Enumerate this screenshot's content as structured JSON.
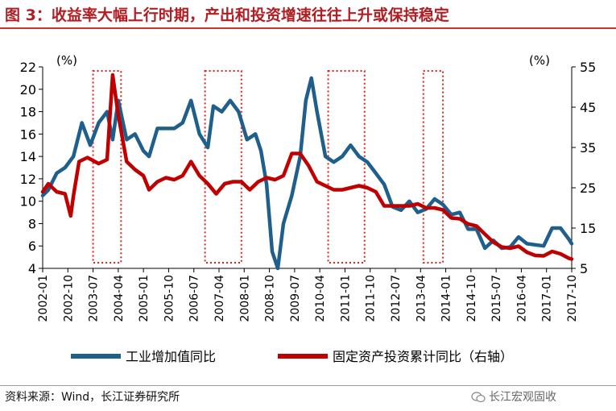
{
  "header": {
    "title": "图 3：收益率大幅上行时期，产出和投资增速往往上升或保持稳定"
  },
  "footer": {
    "source": "资料来源：Wind，长江证券研究所",
    "brand": "长江宏观固收"
  },
  "colors": {
    "series_blue": "#1f5f8b",
    "series_red": "#c00000",
    "highlight_box": "#e02020",
    "title": "#b01e23"
  },
  "chart_data": {
    "type": "line",
    "title": "",
    "left_axis": {
      "unit": "(%)",
      "ylim": [
        4,
        22
      ],
      "ticks": [
        4,
        6,
        8,
        10,
        12,
        14,
        16,
        18,
        20,
        22
      ]
    },
    "right_axis": {
      "unit": "(%)",
      "ylim": [
        5,
        55
      ],
      "ticks": [
        5,
        15,
        25,
        35,
        45,
        55
      ]
    },
    "x_range": [
      "2002-01",
      "2017-10"
    ],
    "x_ticks": [
      "2002-01",
      "2002-10",
      "2003-07",
      "2004-04",
      "2005-01",
      "2005-10",
      "2006-07",
      "2007-04",
      "2008-01",
      "2008-10",
      "2009-07",
      "2010-04",
      "2011-01",
      "2011-10",
      "2012-07",
      "2013-04",
      "2014-01",
      "2014-10",
      "2015-07",
      "2016-04",
      "2017-01",
      "2017-10"
    ],
    "legend": [
      "工业增加值同比",
      "固定资产投资累计同比（右轴）"
    ],
    "highlight_periods": [
      {
        "start": "2003-07",
        "end": "2004-05"
      },
      {
        "start": "2006-11",
        "end": "2007-12"
      },
      {
        "start": "2010-07",
        "end": "2011-08"
      },
      {
        "start": "2013-05",
        "end": "2013-12"
      }
    ],
    "series": [
      {
        "name": "工业增加值同比",
        "axis": "left",
        "color": "#1f5f8b",
        "points": [
          [
            "2002-01",
            10.5
          ],
          [
            "2002-03",
            11.0
          ],
          [
            "2002-06",
            12.5
          ],
          [
            "2002-09",
            13.0
          ],
          [
            "2002-12",
            14.0
          ],
          [
            "2003-03",
            17.0
          ],
          [
            "2003-06",
            15.0
          ],
          [
            "2003-09",
            17.0
          ],
          [
            "2003-12",
            18.0
          ],
          [
            "2004-02",
            15.5
          ],
          [
            "2004-04",
            19.0
          ],
          [
            "2004-07",
            15.5
          ],
          [
            "2004-10",
            16.0
          ],
          [
            "2005-01",
            14.5
          ],
          [
            "2005-03",
            14.0
          ],
          [
            "2005-06",
            16.5
          ],
          [
            "2005-09",
            16.5
          ],
          [
            "2005-12",
            16.5
          ],
          [
            "2006-03",
            17.0
          ],
          [
            "2006-06",
            19.0
          ],
          [
            "2006-09",
            16.0
          ],
          [
            "2006-12",
            14.8
          ],
          [
            "2007-02",
            18.5
          ],
          [
            "2007-05",
            18.0
          ],
          [
            "2007-08",
            19.0
          ],
          [
            "2007-11",
            18.0
          ],
          [
            "2008-02",
            15.5
          ],
          [
            "2008-05",
            16.0
          ],
          [
            "2008-07",
            14.5
          ],
          [
            "2008-09",
            11.5
          ],
          [
            "2008-11",
            5.5
          ],
          [
            "2009-01",
            4.0
          ],
          [
            "2009-03",
            8.0
          ],
          [
            "2009-06",
            10.5
          ],
          [
            "2009-09",
            14.0
          ],
          [
            "2009-11",
            19.0
          ],
          [
            "2010-01",
            21.0
          ],
          [
            "2010-03",
            18.0
          ],
          [
            "2010-06",
            14.0
          ],
          [
            "2010-09",
            13.5
          ],
          [
            "2010-12",
            14.0
          ],
          [
            "2011-03",
            15.0
          ],
          [
            "2011-06",
            14.0
          ],
          [
            "2011-09",
            13.5
          ],
          [
            "2011-12",
            12.5
          ],
          [
            "2012-03",
            11.5
          ],
          [
            "2012-06",
            9.5
          ],
          [
            "2012-09",
            9.2
          ],
          [
            "2012-12",
            10.0
          ],
          [
            "2013-03",
            9.0
          ],
          [
            "2013-06",
            9.3
          ],
          [
            "2013-09",
            10.2
          ],
          [
            "2013-12",
            9.7
          ],
          [
            "2014-03",
            8.8
          ],
          [
            "2014-06",
            9.0
          ],
          [
            "2014-09",
            7.5
          ],
          [
            "2014-12",
            7.5
          ],
          [
            "2015-03",
            5.8
          ],
          [
            "2015-06",
            6.5
          ],
          [
            "2015-09",
            5.8
          ],
          [
            "2015-12",
            5.9
          ],
          [
            "2016-03",
            6.8
          ],
          [
            "2016-06",
            6.2
          ],
          [
            "2016-09",
            6.1
          ],
          [
            "2016-12",
            6.0
          ],
          [
            "2017-03",
            7.6
          ],
          [
            "2017-06",
            7.6
          ],
          [
            "2017-09",
            6.6
          ],
          [
            "2017-10",
            6.2
          ]
        ]
      },
      {
        "name": "固定资产投资累计同比（右轴）",
        "axis": "right",
        "color": "#c00000",
        "points": [
          [
            "2002-01",
            24.0
          ],
          [
            "2002-03",
            26.0
          ],
          [
            "2002-06",
            24.0
          ],
          [
            "2002-09",
            23.5
          ],
          [
            "2002-11",
            18.0
          ],
          [
            "2002-12",
            23.0
          ],
          [
            "2003-02",
            31.5
          ],
          [
            "2003-05",
            32.5
          ],
          [
            "2003-09",
            31.0
          ],
          [
            "2003-12",
            32.0
          ],
          [
            "2004-02",
            53.0
          ],
          [
            "2004-04",
            43.0
          ],
          [
            "2004-07",
            31.5
          ],
          [
            "2004-10",
            29.5
          ],
          [
            "2005-01",
            28.0
          ],
          [
            "2005-03",
            24.5
          ],
          [
            "2005-06",
            26.5
          ],
          [
            "2005-09",
            27.5
          ],
          [
            "2005-12",
            27.0
          ],
          [
            "2006-03",
            28.0
          ],
          [
            "2006-06",
            31.5
          ],
          [
            "2006-09",
            28.0
          ],
          [
            "2006-12",
            26.0
          ],
          [
            "2007-03",
            23.5
          ],
          [
            "2007-06",
            26.0
          ],
          [
            "2007-09",
            26.5
          ],
          [
            "2007-12",
            26.5
          ],
          [
            "2008-03",
            24.5
          ],
          [
            "2008-06",
            26.5
          ],
          [
            "2008-09",
            27.5
          ],
          [
            "2008-12",
            27.0
          ],
          [
            "2009-03",
            28.0
          ],
          [
            "2009-06",
            33.5
          ],
          [
            "2009-09",
            33.5
          ],
          [
            "2009-12",
            30.5
          ],
          [
            "2010-03",
            26.5
          ],
          [
            "2010-06",
            25.5
          ],
          [
            "2010-09",
            24.5
          ],
          [
            "2010-12",
            24.5
          ],
          [
            "2011-03",
            25.0
          ],
          [
            "2011-06",
            25.5
          ],
          [
            "2011-09",
            25.0
          ],
          [
            "2011-12",
            24.0
          ],
          [
            "2012-03",
            20.5
          ],
          [
            "2012-06",
            20.5
          ],
          [
            "2012-09",
            20.5
          ],
          [
            "2012-12",
            20.5
          ],
          [
            "2013-03",
            21.0
          ],
          [
            "2013-06",
            20.0
          ],
          [
            "2013-09",
            20.0
          ],
          [
            "2013-12",
            19.5
          ],
          [
            "2014-03",
            17.5
          ],
          [
            "2014-06",
            17.3
          ],
          [
            "2014-09",
            16.0
          ],
          [
            "2014-12",
            15.5
          ],
          [
            "2015-03",
            13.5
          ],
          [
            "2015-06",
            11.5
          ],
          [
            "2015-09",
            10.3
          ],
          [
            "2015-12",
            10.0
          ],
          [
            "2016-03",
            10.5
          ],
          [
            "2016-06",
            9.0
          ],
          [
            "2016-09",
            8.2
          ],
          [
            "2016-12",
            8.1
          ],
          [
            "2017-03",
            9.2
          ],
          [
            "2017-06",
            8.6
          ],
          [
            "2017-09",
            7.5
          ],
          [
            "2017-10",
            7.3
          ]
        ]
      }
    ]
  }
}
